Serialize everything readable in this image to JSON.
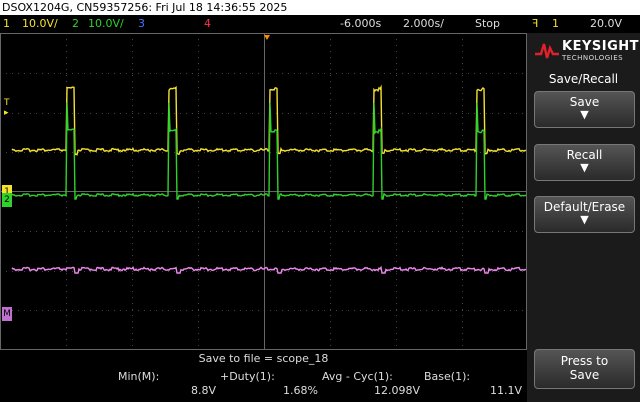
{
  "title": "DSOX1204G, CN59357256: Fri Jul 18 14:36:55 2025",
  "topbar": {
    "ch1_num": "1",
    "ch1_scale": "10.0V/",
    "ch2_num": "2",
    "ch2_scale": "10.0V/",
    "ch3_num": "3",
    "ch4_num": "4",
    "delay": "-6.000s",
    "timebase": "2.000s/",
    "run_state": "Stop",
    "trig_icon": "trigger-slope-icon",
    "trig_source": "1",
    "trig_level": "20.0V"
  },
  "brand": {
    "name": "KEYSIGHT",
    "sub": "TECHNOLOGIES"
  },
  "menu": {
    "title": "Save/Recall",
    "softkeys": [
      {
        "label": "Save",
        "icon": "down-arrow-icon"
      },
      {
        "label": "Recall",
        "icon": "down-arrow-icon"
      },
      {
        "label": "Default/Erase",
        "icon": "down-arrow-icon"
      }
    ],
    "press_to_save": {
      "line1": "Press to",
      "line2": "Save"
    }
  },
  "status": {
    "save_to_file": "Save to file = scope_18"
  },
  "measurements": [
    {
      "name": "Min(M):",
      "value": "8.8V"
    },
    {
      "name": "+Duty(1):",
      "value": "1.68%"
    },
    {
      "name": "Avg - Cyc(1):",
      "value": "12.098V"
    },
    {
      "name": "Base(1):",
      "value": "11.1V"
    }
  ],
  "markers": {
    "ch1": "1",
    "ch2": "2",
    "math": "M",
    "trigger": "T"
  },
  "colors": {
    "ch1": "#f4e22e",
    "ch2": "#2fd12b",
    "ch3": "#4a70ff",
    "ch4": "#ff3344",
    "math": "#ee88ee",
    "trigger_marker": "#ff8c00",
    "grid": "#3a3a3a"
  }
}
